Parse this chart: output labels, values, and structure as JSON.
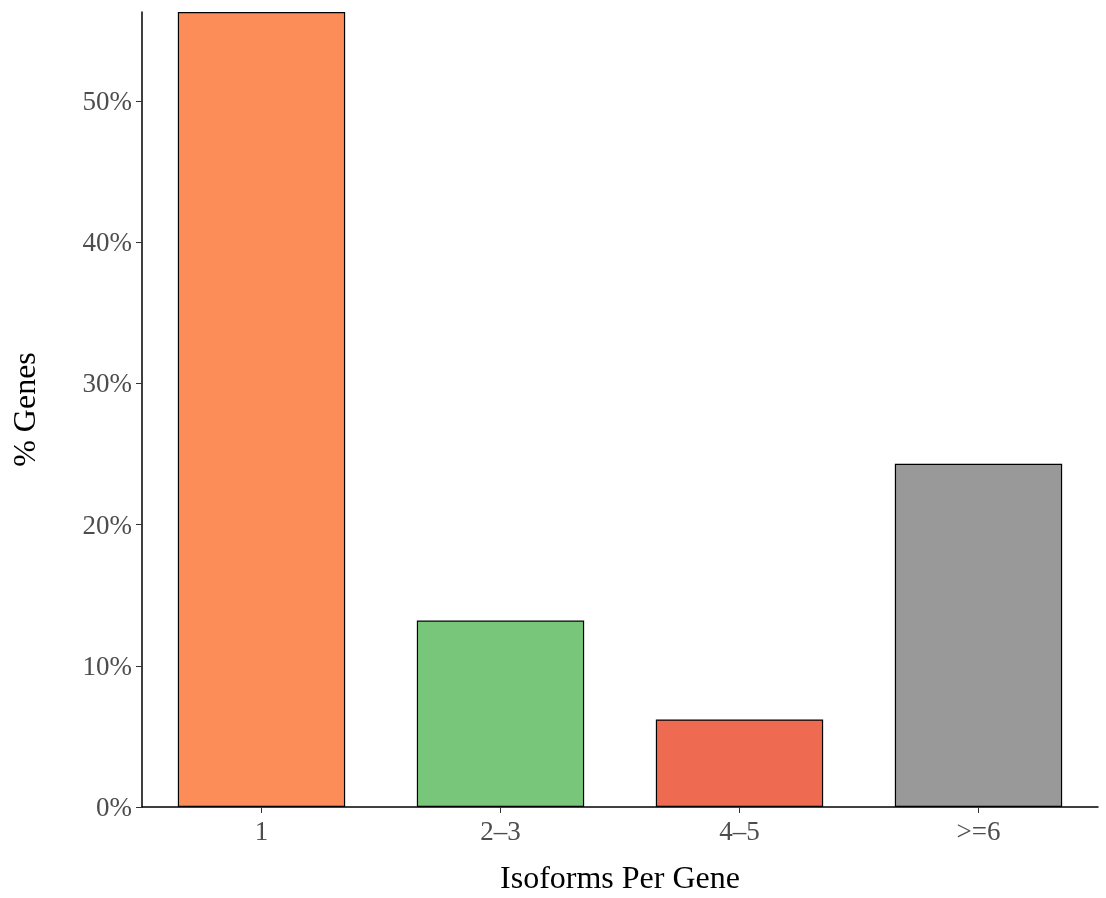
{
  "chart_data": {
    "type": "bar",
    "xlabel": "Isoforms Per Gene",
    "ylabel": "% Genes",
    "categories": [
      "1",
      "2–3",
      "4–5",
      ">=6"
    ],
    "values": [
      56.3,
      13.2,
      6.2,
      24.3
    ],
    "colors": [
      "#fc8d59",
      "#78c679",
      "#ee6a50",
      "#999999"
    ],
    "ylim": [
      0,
      56.3
    ],
    "yticks": [
      {
        "value": 0,
        "label": "0%"
      },
      {
        "value": 10,
        "label": "10%"
      },
      {
        "value": 20,
        "label": "20%"
      },
      {
        "value": 30,
        "label": "30%"
      },
      {
        "value": 40,
        "label": "40%"
      },
      {
        "value": 50,
        "label": "50%"
      }
    ],
    "grid": false
  }
}
